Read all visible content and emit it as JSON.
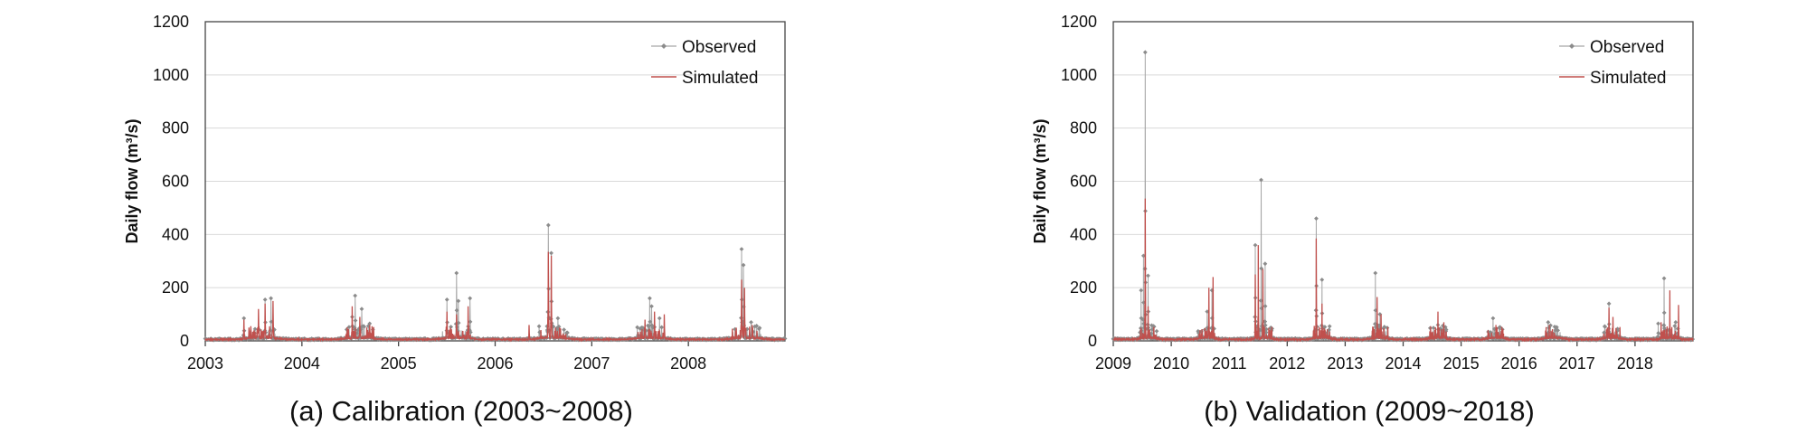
{
  "chart_data": [
    {
      "type": "line",
      "caption": "(a) Calibration (2003~2008)",
      "ylabel": "Daily flow (m³/s)",
      "ylim": [
        0,
        1200
      ],
      "yticks": [
        0,
        200,
        400,
        600,
        800,
        1000,
        1200
      ],
      "xlim": [
        2003,
        2009
      ],
      "xticks": [
        "2003",
        "2004",
        "2005",
        "2006",
        "2007",
        "2008"
      ],
      "grid": true,
      "legend_position": "top-right",
      "series": [
        {
          "name": "Observed",
          "color": "#a6a6a6",
          "marker": "diamond",
          "peaks": [
            {
              "t": 2003.4,
              "v": 85
            },
            {
              "t": 2003.62,
              "v": 155
            },
            {
              "t": 2003.68,
              "v": 160
            },
            {
              "t": 2004.52,
              "v": 90
            },
            {
              "t": 2004.55,
              "v": 170
            },
            {
              "t": 2004.62,
              "v": 120
            },
            {
              "t": 2004.7,
              "v": 65
            },
            {
              "t": 2005.5,
              "v": 155
            },
            {
              "t": 2005.6,
              "v": 255
            },
            {
              "t": 2005.62,
              "v": 150
            },
            {
              "t": 2005.74,
              "v": 160
            },
            {
              "t": 2006.55,
              "v": 435
            },
            {
              "t": 2006.58,
              "v": 330
            },
            {
              "t": 2006.65,
              "v": 85
            },
            {
              "t": 2007.6,
              "v": 160
            },
            {
              "t": 2007.62,
              "v": 130
            },
            {
              "t": 2007.7,
              "v": 85
            },
            {
              "t": 2008.55,
              "v": 345
            },
            {
              "t": 2008.57,
              "v": 285
            },
            {
              "t": 2008.65,
              "v": 70
            }
          ]
        },
        {
          "name": "Simulated",
          "color": "#c0504d",
          "peaks": [
            {
              "t": 2003.4,
              "v": 80
            },
            {
              "t": 2003.55,
              "v": 120
            },
            {
              "t": 2003.62,
              "v": 140
            },
            {
              "t": 2003.7,
              "v": 150
            },
            {
              "t": 2004.52,
              "v": 130
            },
            {
              "t": 2004.6,
              "v": 90
            },
            {
              "t": 2004.7,
              "v": 60
            },
            {
              "t": 2005.5,
              "v": 110
            },
            {
              "t": 2005.6,
              "v": 100
            },
            {
              "t": 2005.72,
              "v": 130
            },
            {
              "t": 2006.35,
              "v": 60
            },
            {
              "t": 2006.55,
              "v": 335
            },
            {
              "t": 2006.58,
              "v": 320
            },
            {
              "t": 2007.55,
              "v": 80
            },
            {
              "t": 2007.65,
              "v": 110
            },
            {
              "t": 2007.75,
              "v": 100
            },
            {
              "t": 2008.55,
              "v": 230
            },
            {
              "t": 2008.58,
              "v": 200
            },
            {
              "t": 2008.66,
              "v": 60
            }
          ]
        }
      ]
    },
    {
      "type": "line",
      "caption": "(b) Validation (2009~2018)",
      "ylabel": "Daily flow (m³/s)",
      "ylim": [
        0,
        1200
      ],
      "yticks": [
        0,
        200,
        400,
        600,
        800,
        1000,
        1200
      ],
      "xlim": [
        2009,
        2019
      ],
      "xticks": [
        "2009",
        "2010",
        "2011",
        "2012",
        "2013",
        "2014",
        "2015",
        "2016",
        "2017",
        "2018"
      ],
      "grid": true,
      "legend_position": "top-right",
      "series": [
        {
          "name": "Observed",
          "color": "#a6a6a6",
          "marker": "diamond",
          "peaks": [
            {
              "t": 2009.55,
              "v": 1085
            },
            {
              "t": 2009.52,
              "v": 320
            },
            {
              "t": 2009.6,
              "v": 245
            },
            {
              "t": 2009.48,
              "v": 190
            },
            {
              "t": 2010.7,
              "v": 190
            },
            {
              "t": 2010.62,
              "v": 110
            },
            {
              "t": 2011.45,
              "v": 360
            },
            {
              "t": 2011.55,
              "v": 605
            },
            {
              "t": 2011.62,
              "v": 290
            },
            {
              "t": 2012.5,
              "v": 460
            },
            {
              "t": 2012.6,
              "v": 230
            },
            {
              "t": 2013.52,
              "v": 255
            },
            {
              "t": 2013.6,
              "v": 100
            },
            {
              "t": 2014.6,
              "v": 60
            },
            {
              "t": 2015.55,
              "v": 85
            },
            {
              "t": 2016.5,
              "v": 70
            },
            {
              "t": 2017.55,
              "v": 140
            },
            {
              "t": 2018.5,
              "v": 235
            },
            {
              "t": 2018.4,
              "v": 65
            },
            {
              "t": 2018.7,
              "v": 70
            }
          ]
        },
        {
          "name": "Simulated",
          "color": "#c0504d",
          "peaks": [
            {
              "t": 2009.55,
              "v": 535
            },
            {
              "t": 2009.6,
              "v": 130
            },
            {
              "t": 2010.65,
              "v": 200
            },
            {
              "t": 2010.72,
              "v": 240
            },
            {
              "t": 2011.45,
              "v": 250
            },
            {
              "t": 2011.5,
              "v": 360
            },
            {
              "t": 2011.58,
              "v": 270
            },
            {
              "t": 2012.5,
              "v": 385
            },
            {
              "t": 2012.6,
              "v": 140
            },
            {
              "t": 2013.55,
              "v": 165
            },
            {
              "t": 2013.62,
              "v": 100
            },
            {
              "t": 2014.6,
              "v": 110
            },
            {
              "t": 2014.7,
              "v": 70
            },
            {
              "t": 2015.6,
              "v": 60
            },
            {
              "t": 2016.52,
              "v": 60
            },
            {
              "t": 2017.55,
              "v": 125
            },
            {
              "t": 2017.62,
              "v": 90
            },
            {
              "t": 2018.45,
              "v": 70
            },
            {
              "t": 2018.6,
              "v": 190
            },
            {
              "t": 2018.75,
              "v": 135
            }
          ]
        }
      ]
    }
  ]
}
